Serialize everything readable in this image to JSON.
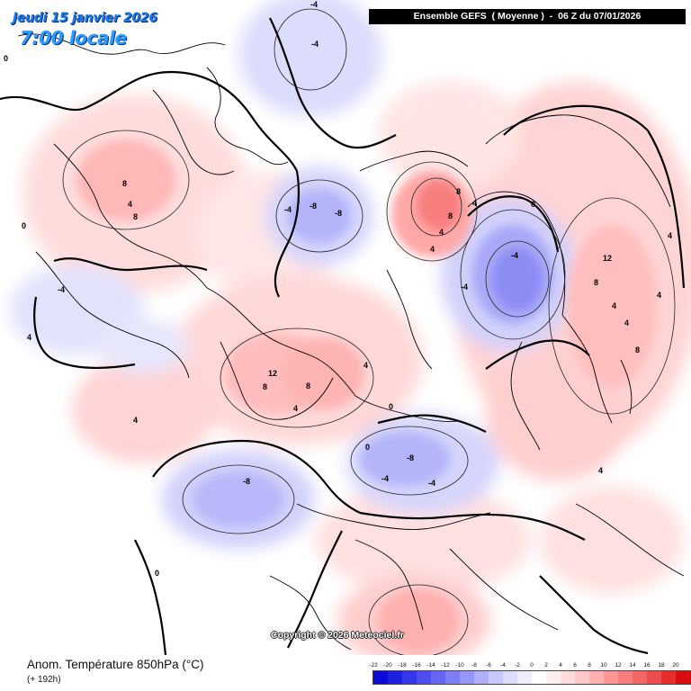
{
  "header": {
    "date_label": "Jeudi 15 janvier 2026",
    "time_label": "7:00 locale",
    "run_label": "Ensemble GEFS  ( Moyenne )  -  06 Z du 07/01/2026"
  },
  "footer": {
    "title": "Anom. Température 850hPa (°C)",
    "subtitle": "(+ 192h)",
    "copyright": "Copyright © 2026 Meteociel.fr"
  },
  "legend": {
    "labels": [
      "-22",
      "-20",
      "-18",
      "-16",
      "-14",
      "-12",
      "-10",
      "-8",
      "-6",
      "-4",
      "-2",
      "0",
      "2",
      "4",
      "6",
      "8",
      "10",
      "12",
      "14",
      "16",
      "18",
      "20"
    ],
    "colors": [
      "#0c0cd6",
      "#1f1fe0",
      "#3535ea",
      "#4d4df0",
      "#6666f4",
      "#7e7ef6",
      "#9696f8",
      "#b0b0fa",
      "#c8c8fc",
      "#dcdcfd",
      "#eeeeff",
      "#ffffff",
      "#ffeeee",
      "#ffdcdc",
      "#ffc8c8",
      "#ffb0b0",
      "#ff9696",
      "#f87e7e",
      "#f46666",
      "#ee4d4d",
      "#e62e2e",
      "#d90e0e"
    ]
  },
  "map": {
    "contour_labels": [
      "-4",
      "-4",
      "-4",
      "-8",
      "-8",
      "-4",
      "-4",
      "-4",
      "-4",
      "-8",
      "-8",
      "-4",
      "4",
      "8",
      "8",
      "4",
      "4",
      "8",
      "4",
      "8",
      "4",
      "12",
      "12",
      "8",
      "8",
      "4",
      "4",
      "4",
      "4",
      "8",
      "8",
      "4",
      "4",
      "4",
      "4",
      "0",
      "0",
      "0",
      "0",
      "0",
      "0"
    ]
  }
}
